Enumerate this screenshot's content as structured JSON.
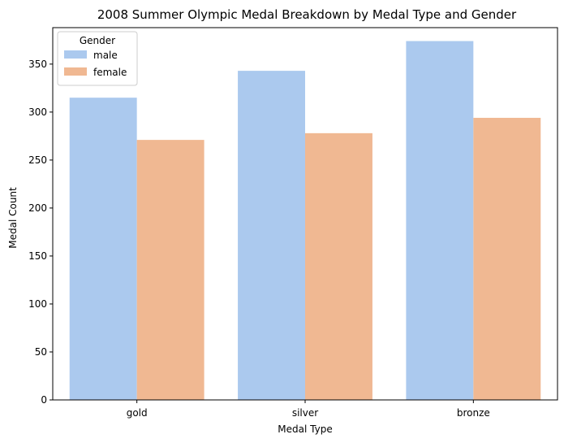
{
  "chart_data": {
    "type": "bar",
    "title": "2008 Summer Olympic Medal Breakdown by Medal Type and Gender",
    "xlabel": "Medal Type",
    "ylabel": "Medal Count",
    "categories": [
      "gold",
      "silver",
      "bronze"
    ],
    "series": [
      {
        "name": "male",
        "values": [
          315,
          343,
          374
        ],
        "color": "#abc9ee"
      },
      {
        "name": "female",
        "values": [
          271,
          278,
          294
        ],
        "color": "#f0b892"
      }
    ],
    "ylim": [
      0,
      388
    ],
    "yticks": [
      0,
      50,
      100,
      150,
      200,
      250,
      300,
      350
    ],
    "grid": false,
    "legend": {
      "title": "Gender",
      "position": "top-left"
    }
  }
}
